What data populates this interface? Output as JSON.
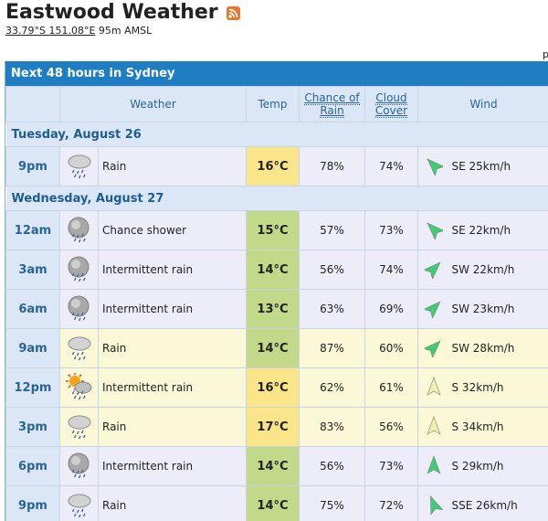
{
  "site": {
    "title": "Eastwood Weather",
    "coords": "33.79°S 151.08°E",
    "altitude": "95m AMSL",
    "stray_text": "p"
  },
  "forecast": {
    "heading": "Next 48 hours in Sydney",
    "columns": {
      "weather": "Weather",
      "temp": "Temp",
      "rain": "Chance of Rain",
      "cloud": "Cloud Cover",
      "wind": "Wind"
    },
    "days": [
      {
        "label": "Tuesday, August 26",
        "rows": [
          {
            "time": "9pm",
            "icon": "rain-icon",
            "weather": "Rain",
            "temp": "16°C",
            "rain": "78%",
            "cloud": "74%",
            "dir": "SE",
            "wind": "SE 25km/h",
            "bg": "blue",
            "temp_color": "#fbe58a",
            "arrow_color": "#42c97a",
            "arrow_rot": -45
          }
        ]
      },
      {
        "label": "Wednesday, August 27",
        "rows": [
          {
            "time": "12am",
            "icon": "shower-icon",
            "weather": "Chance shower",
            "temp": "15°C",
            "rain": "57%",
            "cloud": "73%",
            "dir": "SE",
            "wind": "SE 22km/h",
            "bg": "blue",
            "temp_color": "#c3d98a",
            "arrow_color": "#42c97a",
            "arrow_rot": -45
          },
          {
            "time": "3am",
            "icon": "shower-icon",
            "weather": "Intermittent rain",
            "temp": "14°C",
            "rain": "56%",
            "cloud": "74%",
            "dir": "SW",
            "wind": "SW 22km/h",
            "bg": "blue",
            "temp_color": "#c3d98a",
            "arrow_color": "#42c97a",
            "arrow_rot": 45
          },
          {
            "time": "6am",
            "icon": "shower-icon",
            "weather": "Intermittent rain",
            "temp": "13°C",
            "rain": "63%",
            "cloud": "69%",
            "dir": "SW",
            "wind": "SW 23km/h",
            "bg": "blue",
            "temp_color": "#c3d98a",
            "arrow_color": "#42c97a",
            "arrow_rot": 45
          },
          {
            "time": "9am",
            "icon": "rain-icon",
            "weather": "Rain",
            "temp": "14°C",
            "rain": "87%",
            "cloud": "60%",
            "dir": "SW",
            "wind": "SW 28km/h",
            "bg": "yellow",
            "temp_color": "#c3d98a",
            "arrow_color": "#42c97a",
            "arrow_rot": 45
          },
          {
            "time": "12pm",
            "icon": "sun-shower-icon",
            "weather": "Intermittent rain",
            "temp": "16°C",
            "rain": "62%",
            "cloud": "61%",
            "dir": "S",
            "wind": "S 32km/h",
            "bg": "yellow",
            "temp_color": "#fbe58a",
            "arrow_color": "#f2f0b0",
            "arrow_rot": 0
          },
          {
            "time": "3pm",
            "icon": "rain-icon",
            "weather": "Rain",
            "temp": "17°C",
            "rain": "83%",
            "cloud": "56%",
            "dir": "S",
            "wind": "S 34km/h",
            "bg": "yellow",
            "temp_color": "#fbe58a",
            "arrow_color": "#f2f0b0",
            "arrow_rot": 0
          },
          {
            "time": "6pm",
            "icon": "shower-icon",
            "weather": "Intermittent rain",
            "temp": "14°C",
            "rain": "56%",
            "cloud": "73%",
            "dir": "S",
            "wind": "S 29km/h",
            "bg": "blue",
            "temp_color": "#c3d98a",
            "arrow_color": "#42c97a",
            "arrow_rot": 0
          },
          {
            "time": "9pm",
            "icon": "rain-icon",
            "weather": "Rain",
            "temp": "14°C",
            "rain": "75%",
            "cloud": "72%",
            "dir": "SSE",
            "wind": "SSE 26km/h",
            "bg": "blue",
            "temp_color": "#c3d98a",
            "arrow_color": "#42c97a",
            "arrow_rot": -22
          }
        ]
      }
    ]
  }
}
